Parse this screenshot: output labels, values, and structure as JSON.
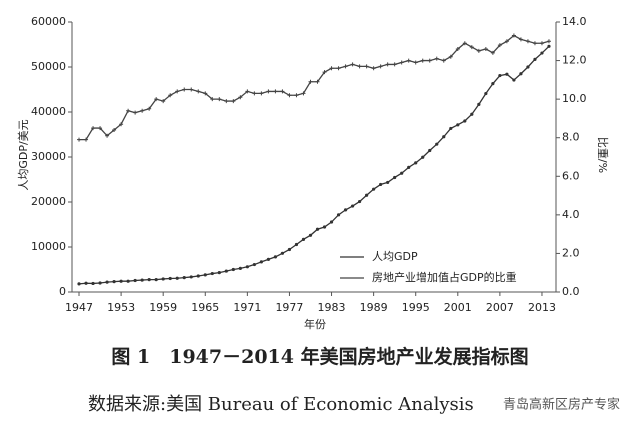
{
  "chart_data": {
    "type": "line",
    "ylabel": "人均GDP/美元",
    "y2label": "比重/%",
    "xlabel": "年份",
    "caption": "图 1　1947－2014 年美国房地产业发展指标图",
    "source": "数据来源:美国 Bureau of Economic Analysis",
    "watermark": "青岛高新区房产专家",
    "x": [
      1947,
      1948,
      1949,
      1950,
      1951,
      1952,
      1953,
      1954,
      1955,
      1956,
      1957,
      1958,
      1959,
      1960,
      1961,
      1962,
      1963,
      1964,
      1965,
      1966,
      1967,
      1968,
      1969,
      1970,
      1971,
      1972,
      1973,
      1974,
      1975,
      1976,
      1977,
      1978,
      1979,
      1980,
      1981,
      1982,
      1983,
      1984,
      1985,
      1986,
      1987,
      1988,
      1989,
      1990,
      1991,
      1992,
      1993,
      1994,
      1995,
      1996,
      1997,
      1998,
      1999,
      2000,
      2001,
      2002,
      2003,
      2004,
      2005,
      2006,
      2007,
      2008,
      2009,
      2010,
      2011,
      2012,
      2013,
      2014
    ],
    "xlim": [
      1946,
      2015
    ],
    "xticks": [
      1947,
      1953,
      1959,
      1965,
      1971,
      1977,
      1983,
      1989,
      1995,
      2001,
      2007,
      2013
    ],
    "ylim": [
      0,
      60000
    ],
    "yticks": [
      0,
      10000,
      20000,
      30000,
      40000,
      50000,
      60000
    ],
    "y2lim": [
      0,
      14
    ],
    "y2ticks": [
      {
        "value": 0,
        "label": "0.0"
      },
      {
        "value": 2,
        "label": "2.0"
      },
      {
        "value": 4,
        "label": "4.0"
      },
      {
        "value": 6,
        "label": "6.0"
      },
      {
        "value": 8,
        "label": "8.0"
      },
      {
        "value": 10,
        "label": "10.0"
      },
      {
        "value": 12,
        "label": "12.0"
      },
      {
        "value": 14,
        "label": "14.0"
      }
    ],
    "legend": "lower-right",
    "series": [
      {
        "name": "人均GDP",
        "color": "#333333",
        "marker": "dot",
        "values": [
          1800,
          1950,
          1900,
          2000,
          2200,
          2300,
          2400,
          2400,
          2550,
          2650,
          2750,
          2750,
          2900,
          3000,
          3050,
          3200,
          3350,
          3550,
          3800,
          4100,
          4300,
          4650,
          5000,
          5250,
          5600,
          6100,
          6700,
          7250,
          7800,
          8600,
          9450,
          10550,
          11700,
          12600,
          13950,
          14450,
          15550,
          17150,
          18250,
          19100,
          20100,
          21500,
          22850,
          23900,
          24350,
          25450,
          26400,
          27700,
          28700,
          29950,
          31450,
          32850,
          34500,
          36350,
          37150,
          38000,
          39500,
          41700,
          44100,
          46300,
          48100,
          48400,
          47100,
          48500,
          50000,
          51700,
          53100,
          54600
        ]
      },
      {
        "name": "房地产业增加值占GDP的比重",
        "color": "#444444",
        "marker": "cross",
        "axis": "y2",
        "values": [
          7.9,
          7.9,
          8.5,
          8.5,
          8.1,
          8.4,
          8.7,
          9.4,
          9.3,
          9.4,
          9.5,
          10.0,
          9.9,
          10.2,
          10.4,
          10.5,
          10.5,
          10.4,
          10.3,
          10.0,
          10.0,
          9.9,
          9.9,
          10.1,
          10.4,
          10.3,
          10.3,
          10.4,
          10.4,
          10.4,
          10.2,
          10.2,
          10.3,
          10.9,
          10.9,
          11.4,
          11.6,
          11.6,
          11.7,
          11.8,
          11.7,
          11.7,
          11.6,
          11.7,
          11.8,
          11.8,
          11.9,
          12.0,
          11.9,
          12.0,
          12.0,
          12.1,
          12.0,
          12.2,
          12.6,
          12.9,
          12.7,
          12.5,
          12.6,
          12.4,
          12.8,
          13.0,
          13.3,
          13.1,
          13.0,
          12.9,
          12.9,
          13.0
        ]
      }
    ]
  }
}
